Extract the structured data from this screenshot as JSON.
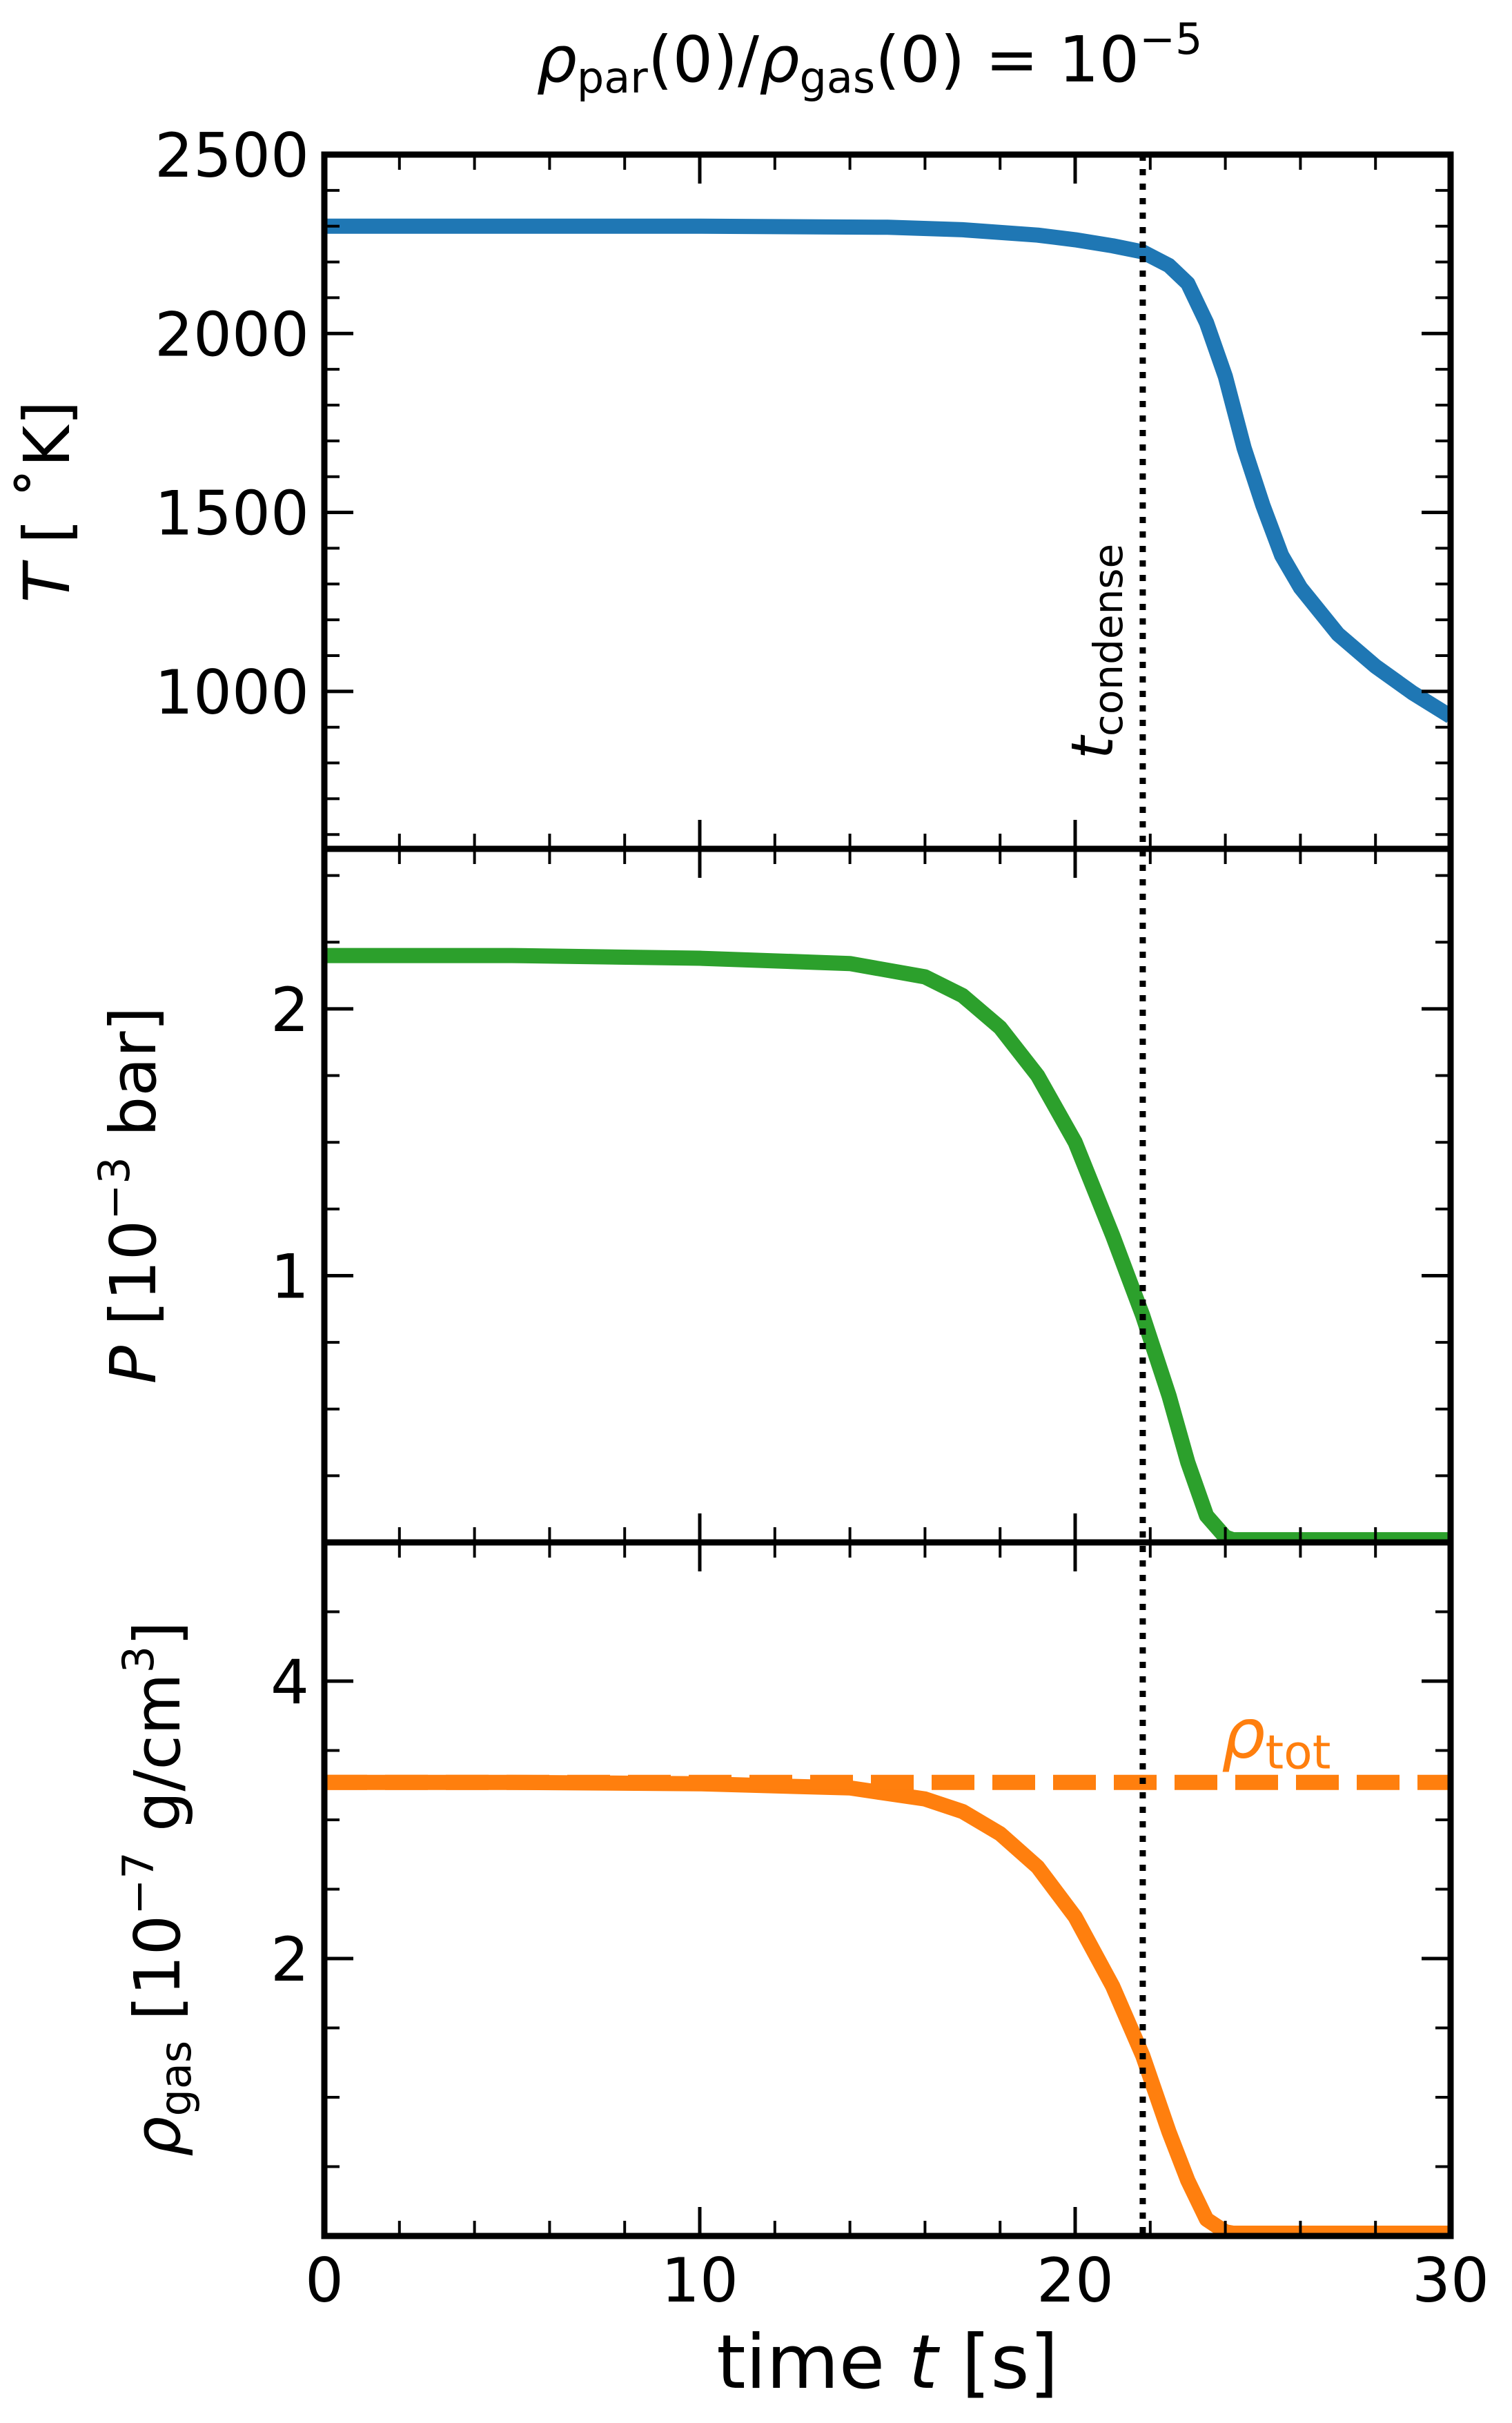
{
  "figure": {
    "title_parts": {
      "rho": "ρ",
      "sub_par": "par",
      "mid": "(0)/",
      "rho2": "ρ",
      "sub_gas": "gas",
      "rhs": "(0) = 10",
      "sup": "−5"
    },
    "x_axis": {
      "label_parts": {
        "a": "time ",
        "t": "t",
        "b": " [s]"
      },
      "ticks": [
        0,
        10,
        20,
        30
      ],
      "range": [
        0,
        30
      ]
    },
    "colors": {
      "temperature": "#1f77b4",
      "pressure": "#2ca02c",
      "density": "#ff7f0e",
      "condense_line": "#000000"
    }
  },
  "chart_data": [
    {
      "type": "line",
      "panel": "top",
      "ylabel_parts": {
        "var": "T",
        "unit": " [ ˚K]"
      },
      "ylim": [
        560,
        2500
      ],
      "yticks": [
        1000,
        1500,
        2000,
        2500
      ],
      "series": [
        {
          "x": [
            0,
            5,
            10,
            15,
            17,
            19,
            20,
            21,
            21.8,
            22.5,
            23,
            23.5,
            24,
            24.5,
            25,
            25.5,
            26,
            27,
            28,
            29,
            30
          ],
          "y": [
            2300,
            2300,
            2300,
            2297,
            2290,
            2275,
            2262,
            2245,
            2228,
            2190,
            2140,
            2030,
            1880,
            1680,
            1520,
            1380,
            1290,
            1160,
            1070,
            995,
            930
          ]
        }
      ],
      "vline": {
        "x": 21.8,
        "label_main": "t",
        "label_sub": "condense"
      }
    },
    {
      "type": "line",
      "panel": "middle",
      "ylabel_parts": {
        "var": "P",
        "unit_a": " [10",
        "sup": "−3",
        "unit_b": " bar]"
      },
      "ylim": [
        0,
        2.6
      ],
      "yticks": [
        1,
        2
      ],
      "series": [
        {
          "x": [
            0,
            5,
            10,
            14,
            16,
            17,
            18,
            19,
            20,
            21,
            21.8,
            22.5,
            23,
            23.5,
            24,
            24.2,
            25,
            27,
            30
          ],
          "y": [
            2.2,
            2.2,
            2.19,
            2.17,
            2.12,
            2.05,
            1.93,
            1.75,
            1.5,
            1.15,
            0.85,
            0.55,
            0.3,
            0.1,
            0.02,
            0.01,
            0.01,
            0.01,
            0.01
          ]
        }
      ]
    },
    {
      "type": "line",
      "panel": "bottom",
      "ylabel_parts": {
        "var": "ρ",
        "sub": "gas",
        "unit_a": " [10",
        "sup": "−7",
        "unit_b": " g/cm",
        "sup2": "3",
        "unit_c": "]"
      },
      "ylim": [
        0,
        5
      ],
      "yticks": [
        2,
        4
      ],
      "series": [
        {
          "x": [
            0,
            5,
            10,
            14,
            16,
            17,
            18,
            19,
            20,
            21,
            21.8,
            22.5,
            23,
            23.5,
            24,
            24.2,
            25,
            27,
            30
          ],
          "y": [
            3.27,
            3.27,
            3.26,
            3.23,
            3.15,
            3.06,
            2.9,
            2.66,
            2.3,
            1.8,
            1.3,
            0.75,
            0.4,
            0.12,
            0.03,
            0.02,
            0.02,
            0.02,
            0.02
          ]
        },
        {
          "style": "dashed",
          "x": [
            0,
            30
          ],
          "y": [
            3.27,
            3.27
          ]
        }
      ],
      "annotation": {
        "main": "ρ",
        "sub": "tot"
      }
    }
  ]
}
